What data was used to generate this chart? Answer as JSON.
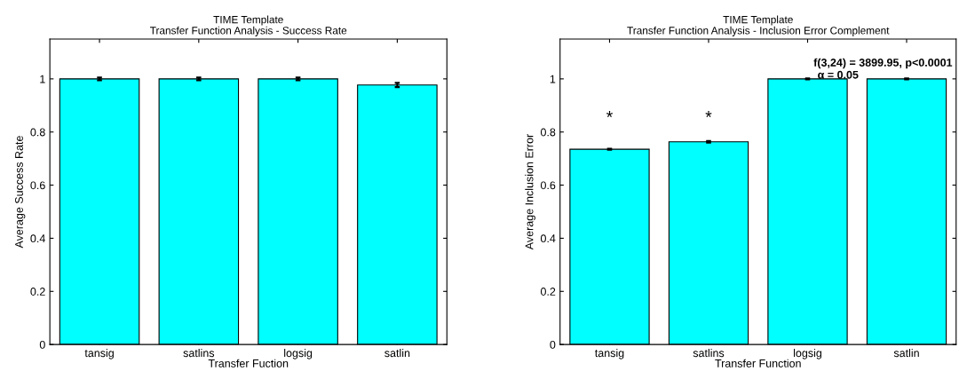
{
  "chart_data": [
    {
      "type": "bar",
      "title": "TIME Template\nTransfer Function Analysis - Success Rate",
      "xlabel": "Transfer Fuction",
      "ylabel": "Average Success Rate",
      "categories": [
        "tansig",
        "satlins",
        "logsig",
        "satlin"
      ],
      "values": [
        1,
        1,
        1,
        0.977
      ],
      "errors": [
        0.005,
        0.005,
        0.005,
        0.008
      ],
      "color": "#00ffff",
      "ylim": [
        0,
        1.15
      ],
      "yticks": [
        0,
        0.2,
        0.4,
        0.6,
        0.8,
        1
      ],
      "grid": false
    },
    {
      "type": "bar",
      "title": "TIME Template\nTransfer Function Analysis - Inclusion Error Complement",
      "xlabel": "Transfer Function",
      "ylabel": "Average Inclusion Error",
      "categories": [
        "tansig",
        "satlins",
        "logsig",
        "satlin"
      ],
      "values": [
        0.735,
        0.763,
        1,
        1
      ],
      "errors": [
        0.002,
        0.003,
        0.002,
        0.002
      ],
      "color": "#00ffff",
      "ylim": [
        0,
        1.15
      ],
      "yticks": [
        0,
        0.2,
        0.4,
        0.6,
        0.8,
        1
      ],
      "grid": false,
      "annotations": [
        "*",
        "*",
        "f(3,24) = 3899.95, p<0.0001",
        "α = 0.05"
      ]
    }
  ]
}
